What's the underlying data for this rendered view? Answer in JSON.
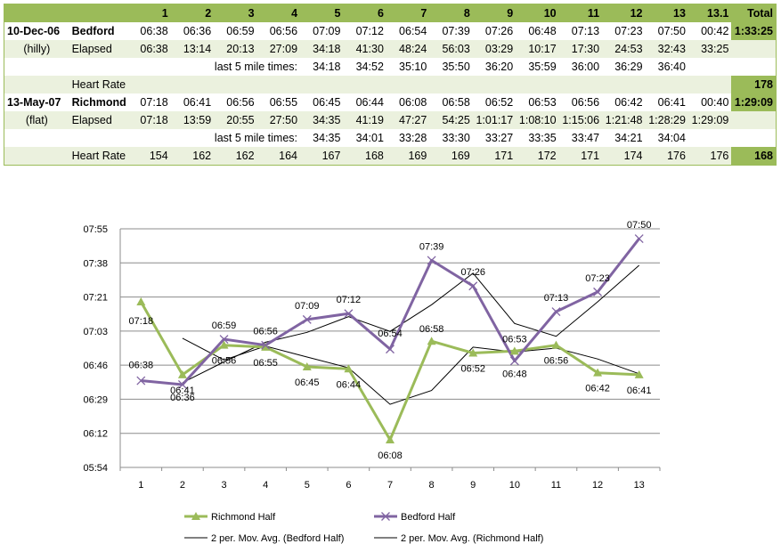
{
  "table": {
    "header": [
      "",
      "",
      "1",
      "2",
      "3",
      "4",
      "5",
      "6",
      "7",
      "8",
      "9",
      "10",
      "11",
      "12",
      "13",
      "13.1",
      "Total"
    ],
    "race1": {
      "date": "10-Dec-06",
      "name": "Bedford",
      "terrain": "(hilly)",
      "splits": [
        "06:38",
        "06:36",
        "06:59",
        "06:56",
        "07:09",
        "07:12",
        "06:54",
        "07:39",
        "07:26",
        "06:48",
        "07:13",
        "07:23",
        "07:50",
        "00:42"
      ],
      "total": "1:33:25",
      "elapsed_label": "Elapsed",
      "elapsed": [
        "06:38",
        "13:14",
        "20:13",
        "27:09",
        "34:18",
        "41:30",
        "48:24",
        "56:03",
        "03:29",
        "10:17",
        "17:30",
        "24:53",
        "32:43",
        "33:25"
      ],
      "last5_label": "last 5 mile times:",
      "last5": [
        "34:18",
        "34:52",
        "35:10",
        "35:50",
        "36:20",
        "35:59",
        "36:00",
        "36:29",
        "36:40"
      ],
      "hr_label": "Heart Rate",
      "hr_total": "178"
    },
    "race2": {
      "date": "13-May-07",
      "name": "Richmond",
      "terrain": "(flat)",
      "splits": [
        "07:18",
        "06:41",
        "06:56",
        "06:55",
        "06:45",
        "06:44",
        "06:08",
        "06:58",
        "06:52",
        "06:53",
        "06:56",
        "06:42",
        "06:41",
        "00:40"
      ],
      "total": "1:29:09",
      "elapsed_label": "Elapsed",
      "elapsed": [
        "07:18",
        "13:59",
        "20:55",
        "27:50",
        "34:35",
        "41:19",
        "47:27",
        "54:25",
        "1:01:17",
        "1:08:10",
        "1:15:06",
        "1:21:48",
        "1:28:29",
        "1:29:09"
      ],
      "last5_label": "last 5 mile times:",
      "last5": [
        "34:35",
        "34:01",
        "33:28",
        "33:30",
        "33:27",
        "33:35",
        "33:47",
        "34:21",
        "34:04"
      ],
      "hr_label": "Heart Rate",
      "hr": [
        "154",
        "162",
        "162",
        "164",
        "167",
        "168",
        "169",
        "169",
        "171",
        "172",
        "171",
        "174",
        "176",
        "176"
      ],
      "hr_total": "168"
    }
  },
  "chart_data": {
    "type": "line",
    "categories": [
      "1",
      "2",
      "3",
      "4",
      "5",
      "6",
      "7",
      "8",
      "9",
      "10",
      "11",
      "12",
      "13"
    ],
    "y_ticks": [
      "05:54",
      "06:12",
      "06:29",
      "06:46",
      "07:03",
      "07:21",
      "07:38",
      "07:55"
    ],
    "ylim_seconds": [
      354,
      475
    ],
    "grid": true,
    "legend_position": "bottom",
    "series": [
      {
        "name": "Richmond Half",
        "color": "#9bbb59",
        "marker": "triangle",
        "labels": [
          "07:18",
          "06:41",
          "06:56",
          "06:55",
          "06:45",
          "06:44",
          "06:08",
          "06:58",
          "06:52",
          "06:53",
          "06:56",
          "06:42",
          "06:41"
        ],
        "values_seconds": [
          438,
          401,
          416,
          415,
          405,
          404,
          368,
          418,
          412,
          413,
          416,
          402,
          401
        ]
      },
      {
        "name": "Bedford Half",
        "color": "#8064a2",
        "marker": "x",
        "labels": [
          "06:38",
          "06:36",
          "06:59",
          "06:56",
          "07:09",
          "07:12",
          "06:54",
          "07:39",
          "07:26",
          "06:48",
          "07:13",
          "07:23",
          "07:50"
        ],
        "values_seconds": [
          398,
          396,
          419,
          416,
          429,
          432,
          414,
          459,
          446,
          408,
          433,
          443,
          470
        ]
      },
      {
        "name": "2 per. Mov. Avg. (Bedford Half)",
        "color": "#000000",
        "values_seconds": [
          null,
          397,
          407.5,
          417.5,
          422.5,
          430.5,
          423,
          436.5,
          452.5,
          427,
          420.5,
          438,
          456.5
        ]
      },
      {
        "name": "2 per. Mov. Avg. (Richmond Half)",
        "color": "#000000",
        "values_seconds": [
          null,
          419.5,
          408.5,
          415.5,
          410,
          404.5,
          386,
          393,
          415,
          412.5,
          414.5,
          409,
          401.5
        ]
      }
    ]
  }
}
